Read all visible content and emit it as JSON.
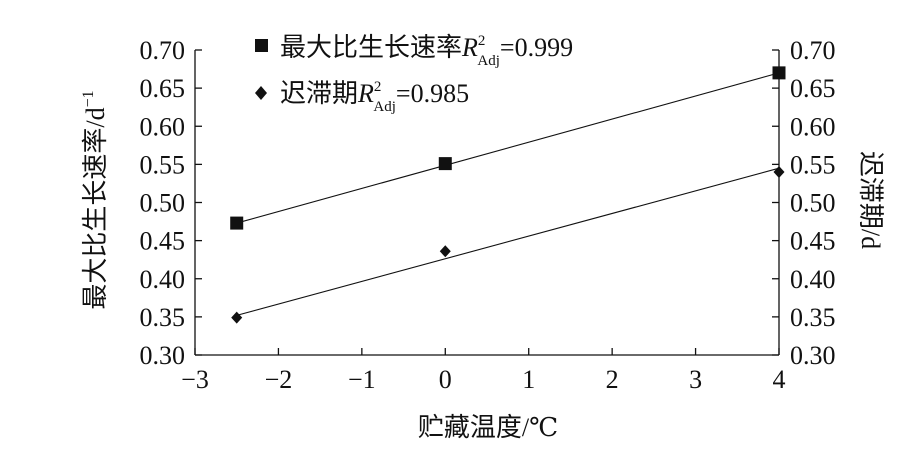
{
  "chart_data": {
    "type": "scatter",
    "x": [
      -2.5,
      0,
      4
    ],
    "xlabel": "贮藏温度/℃",
    "ylabel_left": "最大比生长速率/d",
    "ylabel_left_sup": "−1",
    "ylabel_right": "迟滞期/d",
    "xlim": [
      -3,
      4
    ],
    "xticks": [
      -3,
      -2,
      -1,
      0,
      1,
      2,
      3,
      4
    ],
    "xtick_labels": [
      "−3",
      "−2",
      "−1",
      "0",
      "1",
      "2",
      "3",
      "4"
    ],
    "ylim": [
      0.3,
      0.7
    ],
    "yticks": [
      0.3,
      0.35,
      0.4,
      0.45,
      0.5,
      0.55,
      0.6,
      0.65,
      0.7
    ],
    "ytick_labels": [
      "0.30",
      "0.35",
      "0.40",
      "0.45",
      "0.50",
      "0.55",
      "0.60",
      "0.65",
      "0.70"
    ],
    "grid": false,
    "legend_position": "top-left",
    "series": [
      {
        "name": "最大比生长速率",
        "r2_label": "=0.999",
        "marker": "square",
        "values": [
          0.473,
          0.551,
          0.67
        ],
        "fit": [
          0.473,
          0.67
        ]
      },
      {
        "name": "迟滞期",
        "r2_label": "=0.985",
        "marker": "diamond",
        "values": [
          0.349,
          0.436,
          0.54
        ],
        "fit": [
          0.352,
          0.545
        ]
      }
    ]
  },
  "legend_symbol": {
    "r": "R",
    "sup": "2",
    "sub": "Adj"
  }
}
